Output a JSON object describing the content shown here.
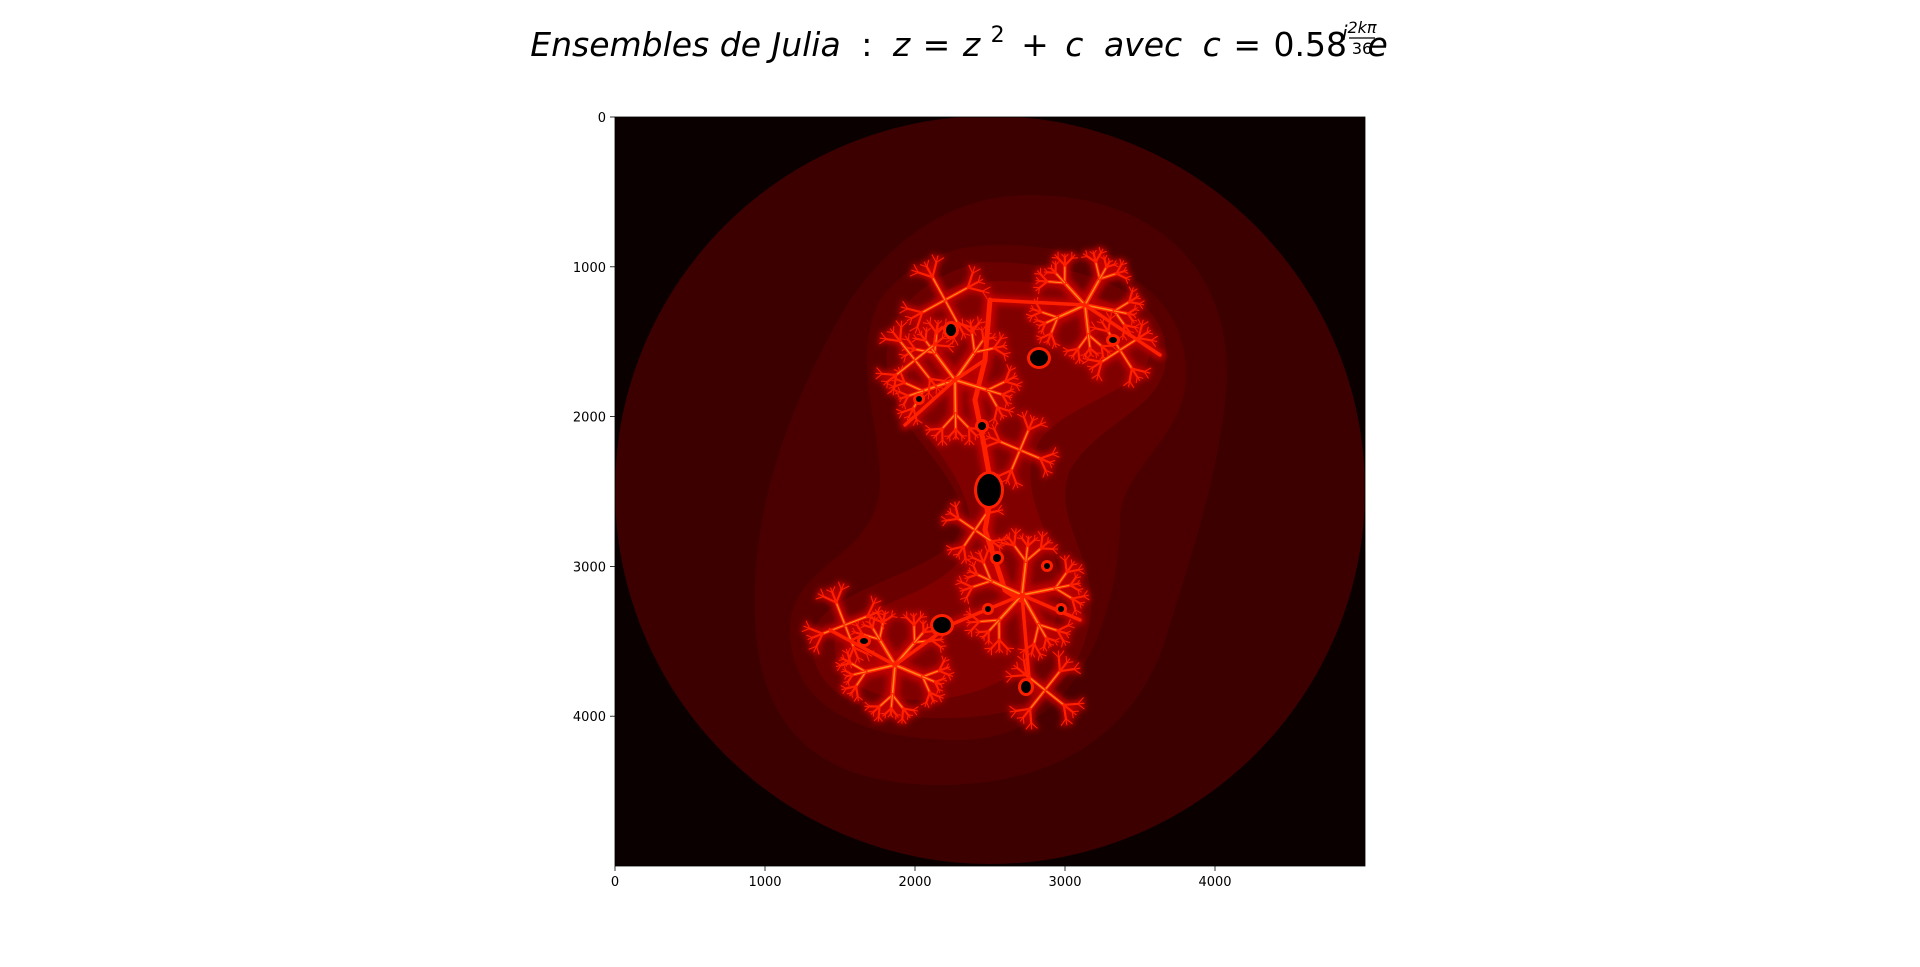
{
  "chart_data": {
    "type": "heatmap",
    "title_parts": {
      "prefix": "Ensembles de Julia",
      "colon": ":",
      "z1": "z",
      "eq1": "=",
      "z2": "z",
      "sq": "2",
      "plus": "+",
      "c1": "c",
      "avec": "avec",
      "c2": "c",
      "eq2": "=",
      "coef": "0.58",
      "e": "e",
      "exp_i": "i",
      "exp_num": "2kπ",
      "exp_den": "36"
    },
    "xlim": [
      0,
      5000
    ],
    "ylim": [
      5000,
      0
    ],
    "x_ticks": [
      0,
      1000,
      2000,
      3000,
      4000
    ],
    "y_ticks": [
      0,
      1000,
      2000,
      3000,
      4000
    ],
    "colormap": "hot",
    "colors": {
      "background": "#0a0000",
      "outer_disc": "#3d0000",
      "band_1": "#4a0000",
      "band_2": "#580000",
      "band_3": "#6a0000",
      "band_4": "#800000",
      "fractal_glow": "#c00000",
      "fractal_edge": "#ff2000",
      "fractal_core": "#ff8a1a",
      "interior": "#000000"
    },
    "julia": {
      "c_modulus": 0.58,
      "c_angle_fraction": "2kπ/36"
    }
  }
}
